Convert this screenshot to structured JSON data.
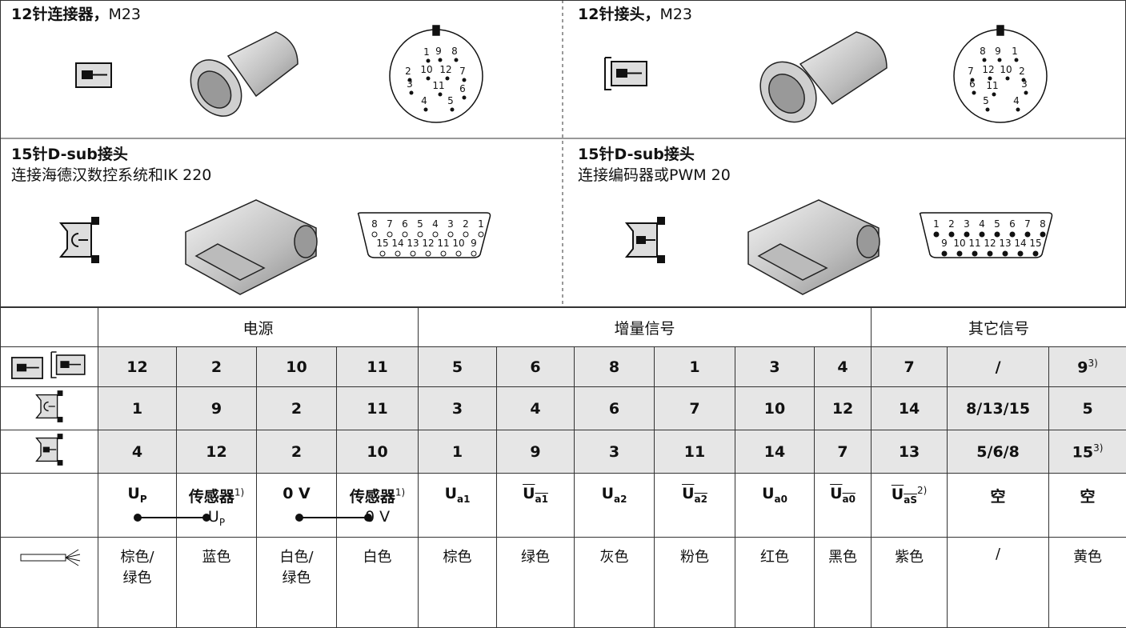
{
  "panels": [
    {
      "title": "12针连接器，",
      "title_suffix": "M23",
      "pins": [
        "1",
        "9",
        "8",
        "2",
        "10",
        "12",
        "7",
        "3",
        "11",
        "6",
        "4",
        "5"
      ]
    },
    {
      "title": "12针接头，",
      "title_suffix": "M23",
      "pins": [
        "8",
        "9",
        "1",
        "7",
        "12",
        "10",
        "2",
        "6",
        "11",
        "3",
        "5",
        "4"
      ]
    },
    {
      "title": "15针D-sub接头",
      "subtitle": "连接海德汉数控系统和IK 220",
      "pins_top": [
        "8",
        "7",
        "6",
        "5",
        "4",
        "3",
        "2",
        "1"
      ],
      "pins_bottom": [
        "15",
        "14",
        "13",
        "12",
        "11",
        "10",
        "9"
      ]
    },
    {
      "title": "15针D-sub接头",
      "subtitle": "连接编码器或PWM 20",
      "pins_top": [
        "1",
        "2",
        "3",
        "4",
        "5",
        "6",
        "7",
        "8"
      ],
      "pins_bottom": [
        "9",
        "10",
        "11",
        "12",
        "13",
        "14",
        "15"
      ]
    }
  ],
  "table": {
    "groups": [
      "电源",
      "增量信号",
      "其它信号"
    ],
    "rows": [
      [
        "12",
        "2",
        "10",
        "11",
        "5",
        "6",
        "8",
        "1",
        "3",
        "4",
        "7",
        "/",
        {
          "text": "9",
          "sup": "3)"
        }
      ],
      [
        "1",
        "9",
        "2",
        "11",
        "3",
        "4",
        "6",
        "7",
        "10",
        "12",
        "14",
        "8/13/15",
        "5"
      ],
      [
        "4",
        "12",
        "2",
        "10",
        "1",
        "9",
        "3",
        "11",
        "14",
        "7",
        "13",
        "5/6/8",
        {
          "text": "15",
          "sup": "3)"
        }
      ]
    ],
    "signals": [
      {
        "text": "U",
        "sub": "P"
      },
      {
        "text": "传感器",
        "sup": "1)",
        "line2": "U",
        "line2_sub": "P"
      },
      {
        "text": "0 V"
      },
      {
        "text": "传感器",
        "sup": "1)",
        "line2": "0 V"
      },
      {
        "text": "U",
        "sub": "a1"
      },
      {
        "text": "U",
        "sub": "a1",
        "overline": true
      },
      {
        "text": "U",
        "sub": "a2"
      },
      {
        "text": "U",
        "sub": "a2",
        "overline": true
      },
      {
        "text": "U",
        "sub": "a0"
      },
      {
        "text": "U",
        "sub": "a0",
        "overline": true
      },
      {
        "text": "U",
        "sub": "aS",
        "overline": true,
        "sup": "2)"
      },
      {
        "text": "空"
      },
      {
        "text": "空"
      }
    ],
    "colors": [
      [
        "棕色/",
        "绿色"
      ],
      [
        "蓝色"
      ],
      [
        "白色/",
        "绿色"
      ],
      [
        "白色"
      ],
      [
        "棕色"
      ],
      [
        "绿色"
      ],
      [
        "灰色"
      ],
      [
        "粉色"
      ],
      [
        "红色"
      ],
      [
        "黑色"
      ],
      [
        "紫色"
      ],
      [
        "/"
      ],
      [
        "黄色"
      ]
    ]
  }
}
